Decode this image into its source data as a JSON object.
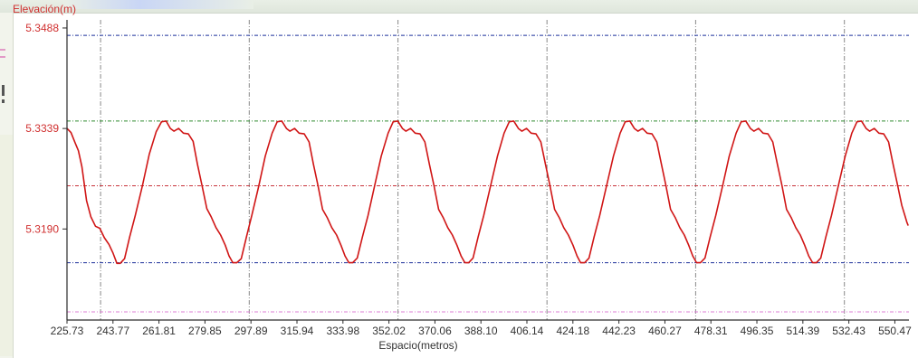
{
  "chart_data": {
    "type": "line",
    "ylabel": "Elevación(m)",
    "xlabel": "Espacio(metros)",
    "y_ticks": [
      "5.3488",
      "5.3339",
      "5.3190"
    ],
    "y_tick_values": [
      5.3488,
      5.3339,
      5.319
    ],
    "x_ticks": [
      "225.73",
      "243.77",
      "261.81",
      "279.85",
      "297.89",
      "315.94",
      "333.98",
      "352.02",
      "370.06",
      "388.10",
      "406.14",
      "424.18",
      "442.23",
      "460.27",
      "478.31",
      "496.35",
      "514.39",
      "532.43",
      "550.47"
    ],
    "x_tick_values": [
      225.73,
      243.77,
      261.81,
      279.85,
      297.89,
      315.94,
      333.98,
      352.02,
      370.06,
      388.1,
      406.14,
      424.18,
      442.23,
      460.27,
      478.31,
      496.35,
      514.39,
      532.43,
      550.47
    ],
    "xlim": [
      225.73,
      556.0
    ],
    "ylim": [
      5.3055,
      5.35
    ],
    "grid": true,
    "vertical_gridlines_x": [
      238.9,
      297.2,
      355.6,
      414.0,
      472.3,
      530.7
    ],
    "reference_lines": [
      {
        "y": 5.3477,
        "color": "#1a2f9a"
      },
      {
        "y": 5.335,
        "color": "#2e8b2e"
      },
      {
        "y": 5.3254,
        "color": "#c8323a"
      },
      {
        "y": 5.314,
        "color": "#1a2f9a"
      },
      {
        "y": 5.3067,
        "color": "#dd7fd6"
      }
    ],
    "series": [
      {
        "color": "#d01515",
        "points": [
          [
            225.73,
            5.3339
          ],
          [
            227.3,
            5.3333
          ],
          [
            228.9,
            5.3318
          ],
          [
            230.2,
            5.3306
          ],
          [
            231.6,
            5.3282
          ],
          [
            233.4,
            5.3232
          ],
          [
            235.1,
            5.3208
          ],
          [
            236.9,
            5.3194
          ],
          [
            238.6,
            5.3191
          ],
          [
            240.4,
            5.3177
          ],
          [
            242.2,
            5.3167
          ],
          [
            243.8,
            5.3154
          ],
          [
            245.3,
            5.3139
          ],
          [
            246.6,
            5.3139
          ],
          [
            248.3,
            5.3146
          ],
          [
            250.3,
            5.3178
          ],
          [
            252.5,
            5.321
          ],
          [
            255.3,
            5.3254
          ],
          [
            258.0,
            5.3301
          ],
          [
            260.7,
            5.3334
          ],
          [
            262.8,
            5.3349
          ],
          [
            264.6,
            5.335
          ],
          [
            266.3,
            5.3339
          ],
          [
            267.7,
            5.3335
          ],
          [
            269.5,
            5.3339
          ],
          [
            271.4,
            5.3332
          ],
          [
            273.3,
            5.3331
          ],
          [
            275.2,
            5.332
          ],
          [
            276.9,
            5.3286
          ],
          [
            278.7,
            5.3254
          ],
          [
            280.6,
            5.322
          ],
          [
            282.3,
            5.3208
          ],
          [
            284.2,
            5.3192
          ],
          [
            286.0,
            5.3181
          ],
          [
            287.8,
            5.3166
          ],
          [
            289.3,
            5.315
          ],
          [
            290.8,
            5.314
          ],
          [
            292.3,
            5.314
          ],
          [
            294.1,
            5.3146
          ],
          [
            296.1,
            5.3178
          ],
          [
            298.2,
            5.321
          ],
          [
            300.9,
            5.3253
          ],
          [
            303.5,
            5.3298
          ],
          [
            306.2,
            5.3332
          ],
          [
            308.2,
            5.3349
          ],
          [
            310.0,
            5.335
          ],
          [
            311.8,
            5.3339
          ],
          [
            313.2,
            5.3335
          ],
          [
            315.0,
            5.3339
          ],
          [
            316.8,
            5.3332
          ],
          [
            318.8,
            5.3331
          ],
          [
            320.7,
            5.3319
          ],
          [
            322.4,
            5.3286
          ],
          [
            324.2,
            5.3254
          ],
          [
            326.0,
            5.3219
          ],
          [
            327.8,
            5.3207
          ],
          [
            329.6,
            5.3192
          ],
          [
            331.5,
            5.3181
          ],
          [
            333.2,
            5.3166
          ],
          [
            334.8,
            5.315
          ],
          [
            336.3,
            5.314
          ],
          [
            337.8,
            5.314
          ],
          [
            339.6,
            5.3147
          ],
          [
            341.6,
            5.3178
          ],
          [
            343.8,
            5.321
          ],
          [
            346.4,
            5.3254
          ],
          [
            349.0,
            5.3298
          ],
          [
            351.7,
            5.3332
          ],
          [
            353.7,
            5.3349
          ],
          [
            355.5,
            5.335
          ],
          [
            357.3,
            5.3339
          ],
          [
            358.7,
            5.3335
          ],
          [
            360.5,
            5.3339
          ],
          [
            362.3,
            5.3332
          ],
          [
            364.2,
            5.3331
          ],
          [
            366.1,
            5.3319
          ],
          [
            367.9,
            5.3286
          ],
          [
            369.7,
            5.3254
          ],
          [
            371.5,
            5.3219
          ],
          [
            373.3,
            5.3207
          ],
          [
            375.1,
            5.3192
          ],
          [
            376.9,
            5.3181
          ],
          [
            378.7,
            5.3166
          ],
          [
            380.3,
            5.315
          ],
          [
            381.8,
            5.314
          ],
          [
            383.3,
            5.314
          ],
          [
            385.0,
            5.3147
          ],
          [
            387.0,
            5.3178
          ],
          [
            389.2,
            5.321
          ],
          [
            391.9,
            5.3254
          ],
          [
            394.6,
            5.3298
          ],
          [
            397.2,
            5.3332
          ],
          [
            399.2,
            5.3349
          ],
          [
            401.0,
            5.335
          ],
          [
            402.8,
            5.3339
          ],
          [
            404.2,
            5.3335
          ],
          [
            406.0,
            5.3339
          ],
          [
            407.8,
            5.3332
          ],
          [
            409.7,
            5.3331
          ],
          [
            411.6,
            5.3319
          ],
          [
            413.4,
            5.3286
          ],
          [
            415.2,
            5.3254
          ],
          [
            417.0,
            5.3219
          ],
          [
            418.8,
            5.3207
          ],
          [
            420.6,
            5.3192
          ],
          [
            422.4,
            5.3181
          ],
          [
            424.2,
            5.3166
          ],
          [
            425.8,
            5.315
          ],
          [
            427.2,
            5.314
          ],
          [
            428.8,
            5.314
          ],
          [
            430.5,
            5.3147
          ],
          [
            432.5,
            5.3178
          ],
          [
            434.7,
            5.321
          ],
          [
            437.4,
            5.3254
          ],
          [
            440.1,
            5.3298
          ],
          [
            442.7,
            5.3332
          ],
          [
            444.7,
            5.3349
          ],
          [
            446.5,
            5.335
          ],
          [
            448.3,
            5.3339
          ],
          [
            449.7,
            5.3335
          ],
          [
            451.5,
            5.3339
          ],
          [
            453.3,
            5.3332
          ],
          [
            455.2,
            5.3331
          ],
          [
            457.1,
            5.3319
          ],
          [
            458.9,
            5.3286
          ],
          [
            460.7,
            5.3254
          ],
          [
            462.5,
            5.3219
          ],
          [
            464.3,
            5.3207
          ],
          [
            466.1,
            5.3192
          ],
          [
            467.9,
            5.3181
          ],
          [
            469.6,
            5.3166
          ],
          [
            471.2,
            5.315
          ],
          [
            472.7,
            5.314
          ],
          [
            474.2,
            5.314
          ],
          [
            476.0,
            5.3147
          ],
          [
            478.0,
            5.3178
          ],
          [
            480.2,
            5.321
          ],
          [
            482.9,
            5.3254
          ],
          [
            485.5,
            5.3298
          ],
          [
            488.2,
            5.3332
          ],
          [
            490.2,
            5.3349
          ],
          [
            492.0,
            5.335
          ],
          [
            493.8,
            5.3339
          ],
          [
            495.2,
            5.3335
          ],
          [
            497.0,
            5.3339
          ],
          [
            498.8,
            5.3332
          ],
          [
            500.7,
            5.3331
          ],
          [
            502.6,
            5.3319
          ],
          [
            504.4,
            5.3286
          ],
          [
            506.2,
            5.3254
          ],
          [
            508.0,
            5.3219
          ],
          [
            509.8,
            5.3207
          ],
          [
            511.6,
            5.3192
          ],
          [
            513.4,
            5.3181
          ],
          [
            515.1,
            5.3166
          ],
          [
            516.7,
            5.315
          ],
          [
            518.2,
            5.314
          ],
          [
            519.7,
            5.314
          ],
          [
            521.4,
            5.3147
          ],
          [
            523.4,
            5.3178
          ],
          [
            525.6,
            5.321
          ],
          [
            528.3,
            5.3254
          ],
          [
            531.0,
            5.3298
          ],
          [
            533.6,
            5.3332
          ],
          [
            535.6,
            5.3349
          ],
          [
            537.4,
            5.335
          ],
          [
            539.2,
            5.3339
          ],
          [
            540.6,
            5.3335
          ],
          [
            542.4,
            5.3339
          ],
          [
            544.2,
            5.3332
          ],
          [
            546.1,
            5.3331
          ],
          [
            548.0,
            5.3319
          ],
          [
            549.8,
            5.3286
          ],
          [
            551.6,
            5.3254
          ],
          [
            553.2,
            5.3225
          ],
          [
            554.4,
            5.321
          ],
          [
            555.2,
            5.32
          ],
          [
            555.7,
            5.3195
          ]
        ]
      }
    ]
  }
}
